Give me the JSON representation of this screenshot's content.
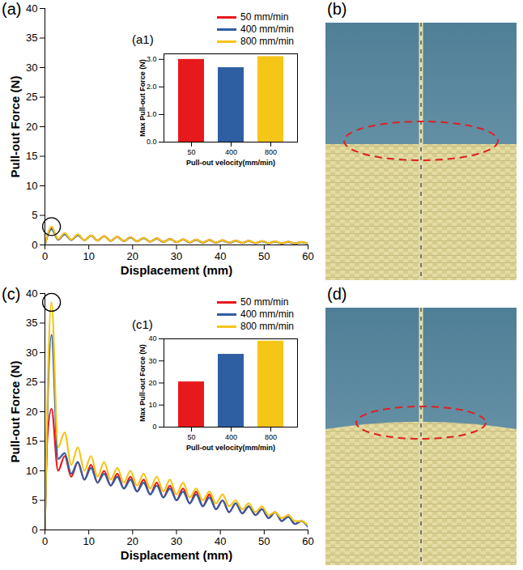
{
  "chart_data": [
    {
      "type": "line",
      "title": "(a)",
      "x_label": "Displacement (mm)",
      "y_label": "Pull-out Force (N)",
      "x": [
        0,
        0.5,
        1.5,
        3,
        4.5,
        6,
        7.5,
        9,
        10.5,
        12,
        13.5,
        15,
        16.5,
        18,
        19.5,
        21,
        22.5,
        24,
        25.5,
        27,
        28.5,
        30,
        31.5,
        33,
        34.5,
        36,
        37.5,
        39,
        40.5,
        42,
        43.5,
        45,
        46.5,
        48,
        49.5,
        51,
        52.5,
        54,
        55.5,
        57,
        58.5,
        60
      ],
      "series": [
        {
          "name": "50 mm/min",
          "color": "#e8191c",
          "values": [
            0,
            1.4,
            3.0,
            0.9,
            1.9,
            0.85,
            1.7,
            0.8,
            1.6,
            0.75,
            1.5,
            0.7,
            1.4,
            0.65,
            1.3,
            0.6,
            1.2,
            0.55,
            1.1,
            0.5,
            1.0,
            0.45,
            0.95,
            0.42,
            0.9,
            0.4,
            0.85,
            0.38,
            0.8,
            0.35,
            0.75,
            0.33,
            0.7,
            0.3,
            0.65,
            0.28,
            0.6,
            0.25,
            0.55,
            0.22,
            0.5,
            0.2
          ]
        },
        {
          "name": "400 mm/min",
          "color": "#2e5fa3",
          "values": [
            0,
            1.3,
            2.7,
            0.9,
            1.8,
            0.85,
            1.65,
            0.8,
            1.55,
            0.75,
            1.45,
            0.7,
            1.35,
            0.65,
            1.25,
            0.6,
            1.15,
            0.55,
            1.05,
            0.5,
            1.0,
            0.45,
            0.9,
            0.42,
            0.85,
            0.4,
            0.8,
            0.38,
            0.75,
            0.35,
            0.7,
            0.33,
            0.65,
            0.3,
            0.6,
            0.28,
            0.55,
            0.25,
            0.5,
            0.22,
            0.45,
            0.2
          ]
        },
        {
          "name": "800 mm/min",
          "color": "#f5c518",
          "values": [
            0,
            1.5,
            3.1,
            1.0,
            2.0,
            0.9,
            1.8,
            0.8,
            1.6,
            0.75,
            1.5,
            0.7,
            1.4,
            0.65,
            1.3,
            0.6,
            1.2,
            0.55,
            1.1,
            0.5,
            1.0,
            0.48,
            0.95,
            0.45,
            0.9,
            0.42,
            0.85,
            0.4,
            0.8,
            0.38,
            0.75,
            0.35,
            0.7,
            0.33,
            0.65,
            0.3,
            0.6,
            0.28,
            0.55,
            0.25,
            0.5,
            0.2
          ]
        }
      ],
      "xlim": [
        0,
        60
      ],
      "xticks": [
        0,
        10,
        20,
        30,
        40,
        50,
        60
      ],
      "ylim": [
        0,
        40
      ],
      "yticks": [
        0,
        5,
        10,
        15,
        20,
        25,
        30,
        35,
        40
      ],
      "legend": "upper right"
    },
    {
      "type": "bar",
      "title": "(a1)",
      "x_label": "Pull-out velocity(mm/min)",
      "y_label": "Max Pull-out Force (N)",
      "categories": [
        "50",
        "400",
        "800"
      ],
      "values": [
        3.0,
        2.7,
        3.1
      ],
      "colors": [
        "#e8191c",
        "#2e5fa3",
        "#f5c518"
      ],
      "ylim": [
        0,
        3.2
      ],
      "yticks": [
        0,
        1,
        2,
        3
      ]
    },
    {
      "type": "line",
      "title": "(c)",
      "x_label": "Displacement (mm)",
      "y_label": "Pull-out Force (N)",
      "x": [
        0,
        0.5,
        1.5,
        3,
        4.5,
        6,
        7.5,
        9,
        10.5,
        12,
        13.5,
        15,
        16.5,
        18,
        19.5,
        21,
        22.5,
        24,
        25.5,
        27,
        28.5,
        30,
        31.5,
        33,
        34.5,
        36,
        37.5,
        39,
        40.5,
        42,
        43.5,
        45,
        46.5,
        48,
        49.5,
        51,
        52.5,
        54,
        55.5,
        57,
        58.5,
        60
      ],
      "series": [
        {
          "name": "50 mm/min",
          "color": "#e8191c",
          "values": [
            0,
            15,
            20.5,
            10,
            12.5,
            9,
            11.5,
            8.5,
            11,
            8,
            10,
            7.5,
            9.5,
            7,
            9,
            6.5,
            8.5,
            6,
            8,
            5.5,
            7.5,
            5,
            7,
            4.5,
            6.5,
            4,
            6,
            3.5,
            5,
            3,
            4.5,
            2.8,
            4,
            2.5,
            3.5,
            2,
            3,
            1.5,
            2.5,
            1,
            1.5,
            0.6
          ]
        },
        {
          "name": "400 mm/min",
          "color": "#2e5fa3",
          "values": [
            0,
            18,
            33,
            12,
            13,
            9.5,
            11.5,
            8.5,
            10.5,
            8,
            9.5,
            7.5,
            9,
            7,
            8.5,
            6.5,
            8,
            6,
            7.5,
            5.5,
            7,
            5,
            6.5,
            4.5,
            6,
            4,
            5.5,
            3.5,
            5,
            3,
            4.5,
            2.8,
            4,
            2.5,
            3.5,
            2,
            3,
            1.5,
            2.2,
            1,
            1.5,
            0.5
          ]
        },
        {
          "name": "800 mm/min",
          "color": "#f5c518",
          "values": [
            0,
            20,
            38.5,
            14,
            16.5,
            11,
            14,
            10,
            12.5,
            9,
            11.5,
            8.5,
            10.5,
            8,
            10,
            7.5,
            9.5,
            7,
            9,
            6.5,
            8.5,
            6,
            8,
            5.5,
            7,
            5,
            6.5,
            4.5,
            6,
            4,
            5,
            3.5,
            4.5,
            3,
            4,
            2.5,
            3,
            2,
            2.5,
            1.5,
            1.5,
            0.8
          ]
        }
      ],
      "xlim": [
        0,
        60
      ],
      "xticks": [
        0,
        10,
        20,
        30,
        40,
        50,
        60
      ],
      "ylim": [
        0,
        40
      ],
      "yticks": [
        0,
        5,
        10,
        15,
        20,
        25,
        30,
        35,
        40
      ],
      "legend": "upper right"
    },
    {
      "type": "bar",
      "title": "(c1)",
      "x_label": "Pull-out velocity(mm/min)",
      "y_label": "Max Pull-out Force (N)",
      "categories": [
        "50",
        "400",
        "800"
      ],
      "values": [
        20.5,
        33,
        39
      ],
      "colors": [
        "#e8191c",
        "#2e5fa3",
        "#f5c518"
      ],
      "ylim": [
        0,
        40
      ],
      "yticks": [
        0,
        10,
        20,
        30,
        40
      ]
    }
  ],
  "images": [
    {
      "label": "(b)"
    },
    {
      "label": "(d)"
    }
  ]
}
